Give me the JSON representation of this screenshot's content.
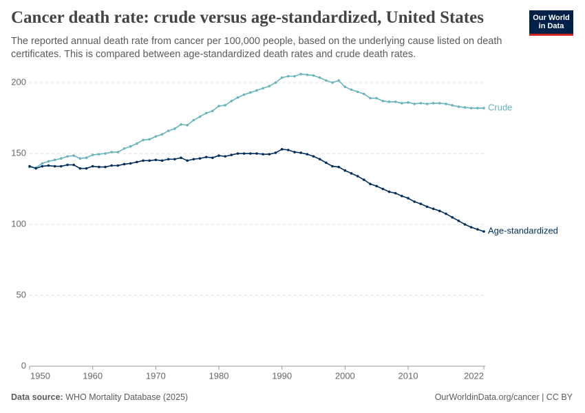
{
  "chart_data": {
    "type": "line",
    "title": "Cancer death rate: crude versus age-standardized, United States",
    "subtitle": "The reported annual death rate from cancer per 100,000 people, based on the underlying cause listed on death certificates. This is compared between age-standardized death rates and crude death rates.",
    "logo": "Our World in Data",
    "source_label": "Data source:",
    "source": "WHO Mortality Database (2025)",
    "credit": "OurWorldinData.org/cancer | CC BY",
    "x": [
      1950,
      1951,
      1952,
      1953,
      1954,
      1955,
      1956,
      1957,
      1958,
      1959,
      1960,
      1961,
      1962,
      1963,
      1964,
      1965,
      1966,
      1967,
      1968,
      1969,
      1970,
      1971,
      1972,
      1973,
      1974,
      1975,
      1976,
      1977,
      1978,
      1979,
      1980,
      1981,
      1982,
      1983,
      1984,
      1985,
      1986,
      1987,
      1988,
      1989,
      1990,
      1991,
      1992,
      1993,
      1994,
      1995,
      1996,
      1997,
      1998,
      1999,
      2000,
      2001,
      2002,
      2003,
      2004,
      2005,
      2006,
      2007,
      2008,
      2009,
      2010,
      2011,
      2012,
      2013,
      2014,
      2015,
      2016,
      2017,
      2018,
      2019,
      2020,
      2021,
      2022
    ],
    "series": [
      {
        "name": "Crude",
        "color": "#67b4bc",
        "values": [
          140.5,
          140,
          143,
          144.5,
          145.5,
          146.5,
          148,
          148.5,
          146.5,
          147,
          149,
          149.5,
          150,
          151,
          151,
          153.5,
          155,
          157,
          159.5,
          160,
          162,
          163.5,
          166,
          167.5,
          170.5,
          170,
          173.5,
          176,
          178.5,
          180,
          183.5,
          184,
          187,
          189.5,
          191.5,
          193,
          194.5,
          196,
          197.5,
          200,
          203.5,
          204.5,
          204.5,
          206,
          205.5,
          205,
          203.5,
          201.5,
          200,
          201.5,
          197,
          195,
          193.5,
          192,
          189,
          189,
          187,
          186.5,
          186.5,
          185.5,
          186,
          185,
          185.5,
          185,
          185.5,
          185.5,
          185,
          184,
          183,
          182.5,
          182,
          182,
          182
        ]
      },
      {
        "name": "Age-standardized",
        "color": "#002d5b",
        "values": [
          141,
          139.5,
          141,
          141.5,
          141,
          141,
          142,
          142,
          139.5,
          139.5,
          141,
          140.5,
          140.5,
          141.5,
          141.5,
          142.5,
          143,
          144,
          145,
          145,
          145.5,
          145,
          146,
          146,
          147,
          145,
          146,
          146.5,
          147.5,
          147,
          148.5,
          148,
          149,
          150,
          150,
          150,
          150,
          149.5,
          149.5,
          150.5,
          153,
          152.5,
          151,
          150.5,
          149.5,
          148,
          146,
          143.5,
          141,
          140.5,
          138,
          136,
          134,
          131.5,
          128.5,
          127,
          125,
          123,
          122,
          120,
          118.5,
          116,
          114.5,
          112.5,
          111,
          109.5,
          107.5,
          105,
          102.5,
          100,
          98,
          96.5,
          95
        ]
      }
    ],
    "xlim": [
      1950,
      2022
    ],
    "xticks": [
      1950,
      1960,
      1970,
      1980,
      1990,
      2000,
      2010,
      2022
    ],
    "ylim": [
      0,
      207
    ],
    "yticks": [
      0,
      50,
      100,
      150,
      200
    ],
    "grid": true
  }
}
